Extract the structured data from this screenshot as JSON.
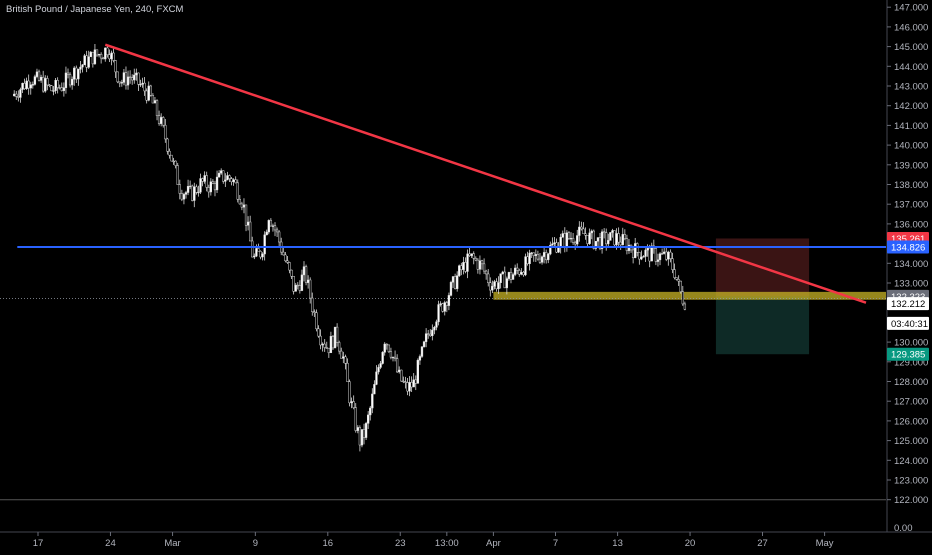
{
  "header": {
    "title": "British Pound / Japanese Yen, 240, FXCM"
  },
  "chart_data": {
    "type": "candlestick",
    "symbol": "British Pound / Japanese Yen",
    "interval": "240",
    "source": "FXCM",
    "ylim": [
      121.5,
      147.2
    ],
    "y_ticks": [
      122,
      123,
      124,
      125,
      126,
      127,
      128,
      129,
      130,
      131,
      132,
      133,
      134,
      135,
      136,
      137,
      138,
      139,
      140,
      141,
      142,
      143,
      144,
      145,
      146,
      147
    ],
    "y_tick_labels": [
      "122.000",
      "123.000",
      "124.000",
      "125.000",
      "126.000",
      "127.000",
      "128.000",
      "129.000",
      "130.000",
      "131.000",
      "132.000",
      "133.000",
      "134.000",
      "135.000",
      "136.000",
      "137.000",
      "138.000",
      "139.000",
      "140.000",
      "141.000",
      "142.000",
      "143.000",
      "144.000",
      "145.000",
      "146.000",
      "147.000"
    ],
    "volume_axis_label": "0.00",
    "x_ticks": [
      {
        "label": "17",
        "t": 0
      },
      {
        "label": "24",
        "t": 7
      },
      {
        "label": "Mar",
        "t": 13
      },
      {
        "label": "9",
        "t": 21
      },
      {
        "label": "16",
        "t": 28
      },
      {
        "label": "23",
        "t": 35
      },
      {
        "label": "13:00",
        "t": 39.5
      },
      {
        "label": "Apr",
        "t": 44
      },
      {
        "label": "7",
        "t": 50
      },
      {
        "label": "13",
        "t": 56
      },
      {
        "label": "20",
        "t": 63
      },
      {
        "label": "27",
        "t": 70
      },
      {
        "label": "May",
        "t": 76
      }
    ],
    "price_path": [
      [
        -2.3,
        142.5
      ],
      [
        -1.5,
        142.9
      ],
      [
        -0.5,
        143.4
      ],
      [
        0.5,
        143.2
      ],
      [
        1.5,
        142.8
      ],
      [
        2.5,
        143.0
      ],
      [
        3.5,
        143.6
      ],
      [
        4.5,
        144.1
      ],
      [
        5.5,
        144.5
      ],
      [
        6.5,
        144.7
      ],
      [
        7.0,
        145.0
      ],
      [
        7.5,
        144.1
      ],
      [
        8.2,
        143.2
      ],
      [
        9.0,
        143.5
      ],
      [
        10.0,
        143.1
      ],
      [
        11.0,
        142.5
      ],
      [
        12.0,
        141.2
      ],
      [
        12.8,
        139.9
      ],
      [
        13.5,
        138.6
      ],
      [
        14.0,
        137.7
      ],
      [
        15.0,
        137.5
      ],
      [
        16.0,
        138.1
      ],
      [
        17.0,
        137.9
      ],
      [
        18.0,
        138.4
      ],
      [
        19.0,
        138.3
      ],
      [
        20.0,
        137.1
      ],
      [
        21.0,
        134.2
      ],
      [
        21.8,
        134.6
      ],
      [
        22.5,
        136.5
      ],
      [
        23.2,
        135.6
      ],
      [
        24.0,
        134.3
      ],
      [
        25.0,
        132.6
      ],
      [
        26.0,
        133.5
      ],
      [
        26.8,
        131.6
      ],
      [
        27.5,
        130.3
      ],
      [
        28.2,
        129.7
      ],
      [
        29.0,
        130.4
      ],
      [
        29.7,
        129.2
      ],
      [
        30.2,
        127.5
      ],
      [
        30.8,
        126.0
      ],
      [
        31.3,
        125.0
      ],
      [
        31.8,
        125.4
      ],
      [
        32.3,
        126.6
      ],
      [
        33.0,
        128.5
      ],
      [
        33.7,
        130.2
      ],
      [
        34.3,
        129.6
      ],
      [
        35.0,
        128.3
      ],
      [
        35.8,
        127.6
      ],
      [
        36.5,
        127.9
      ],
      [
        37.2,
        129.2
      ],
      [
        37.8,
        130.3
      ],
      [
        38.5,
        131.2
      ],
      [
        39.2,
        131.8
      ],
      [
        40.0,
        132.6
      ],
      [
        41.0,
        133.6
      ],
      [
        42.0,
        134.3
      ],
      [
        43.0,
        133.9
      ],
      [
        44.0,
        132.9
      ],
      [
        45.0,
        133.1
      ],
      [
        46.0,
        133.4
      ],
      [
        47.0,
        133.8
      ],
      [
        48.0,
        134.2
      ],
      [
        49.0,
        134.5
      ],
      [
        50.0,
        134.9
      ],
      [
        51.0,
        135.2
      ],
      [
        52.0,
        135.4
      ],
      [
        53.0,
        135.5
      ],
      [
        54.0,
        135.1
      ],
      [
        55.0,
        135.2
      ],
      [
        56.0,
        135.3
      ],
      [
        57.0,
        135.0
      ],
      [
        58.0,
        134.6
      ],
      [
        59.0,
        134.5
      ],
      [
        60.0,
        134.4
      ],
      [
        61.0,
        134.3
      ],
      [
        61.7,
        133.6
      ],
      [
        62.2,
        132.6
      ],
      [
        62.6,
        132.1
      ]
    ],
    "trendline": {
      "color": "#f23645",
      "from": {
        "t": 6.5,
        "price": 145.1
      },
      "to": {
        "t": 80.0,
        "price": 132.0
      }
    },
    "resistance_line": {
      "color": "#2962ff",
      "price": 134.826,
      "from_t": -2.0,
      "to_t": 84.0
    },
    "support_zone": {
      "color": "#c8b425",
      "price_top": 132.55,
      "price_bottom": 132.15,
      "from_t": 44.0,
      "to_t": 84.0
    },
    "dotted_price_line": {
      "price": 132.212
    },
    "bottom_line": {
      "price": 122.0
    },
    "position": {
      "from_t": 65.5,
      "to_t": 74.5,
      "entry": 132.323,
      "stop": 135.261,
      "target": 129.385,
      "stop_color": "#3a1414",
      "target_color": "#0e2a26"
    },
    "price_labels": [
      {
        "text": "135.261",
        "price": 135.261,
        "bg": "#f23645",
        "fg": "#ffffff"
      },
      {
        "text": "134.826",
        "price": 134.826,
        "bg": "#2962ff",
        "fg": "#ffffff"
      },
      {
        "text": "132.323",
        "price": 132.323,
        "bg": "#6a6d78",
        "fg": "#ffffff"
      },
      {
        "text": "132.212",
        "price": 131.95,
        "bg": "#ffffff",
        "fg": "#000000"
      },
      {
        "text": "03:40:31",
        "price": 130.95,
        "bg": "#ffffff",
        "fg": "#000000"
      },
      {
        "text": "129.385",
        "price": 129.385,
        "bg": "#089981",
        "fg": "#ffffff"
      }
    ]
  }
}
